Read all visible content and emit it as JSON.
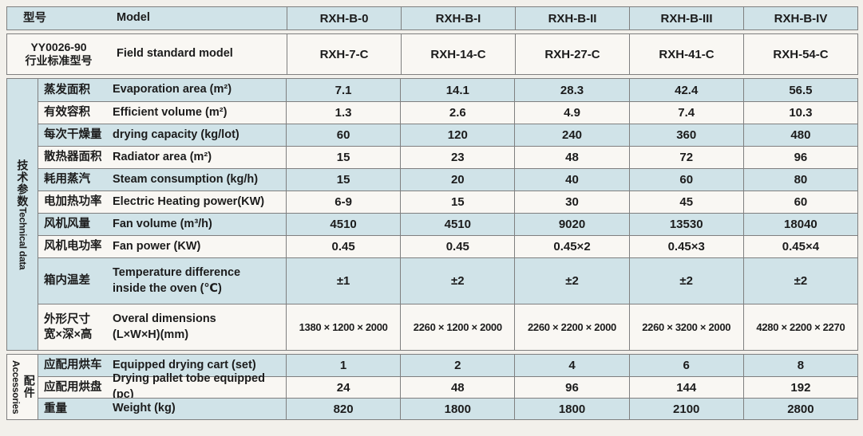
{
  "table": {
    "colors": {
      "row_blue": "#d0e3e8",
      "row_white": "#f9f7f3",
      "border": "#7f7f7f",
      "page_background": "#f2f0eb",
      "text": "#1c1c1c"
    },
    "header_rows": [
      {
        "cn": "型号",
        "en": "Model",
        "values": [
          "RXH-B-0",
          "RXH-B-I",
          "RXH-B-II",
          "RXH-B-III",
          "RXH-B-IV"
        ]
      },
      {
        "cn": "YY0026-90\n行业标准型号",
        "en": "Field standard model",
        "values": [
          "RXH-7-C",
          "RXH-14-C",
          "RXH-27-C",
          "RXH-41-C",
          "RXH-54-C"
        ]
      }
    ],
    "sections": [
      {
        "label_cn": "技术参数",
        "label_en": "Technical data",
        "rows": [
          {
            "cn": "蒸发面积",
            "en": "Evaporation area (m²)",
            "values": [
              "7.1",
              "14.1",
              "28.3",
              "42.4",
              "56.5"
            ]
          },
          {
            "cn": "有效容积",
            "en": "Efficient volume (m²)",
            "values": [
              "1.3",
              "2.6",
              "4.9",
              "7.4",
              "10.3"
            ]
          },
          {
            "cn": "每次干燥量",
            "en": "drying capacity (kg/lot)",
            "values": [
              "60",
              "120",
              "240",
              "360",
              "480"
            ]
          },
          {
            "cn": "散热器面积",
            "en": "Radiator area (m²)",
            "values": [
              "15",
              "23",
              "48",
              "72",
              "96"
            ]
          },
          {
            "cn": "耗用蒸汽",
            "en": "Steam consumption (kg/h)",
            "values": [
              "15",
              "20",
              "40",
              "60",
              "80"
            ]
          },
          {
            "cn": "电加热功率",
            "en": "Electric Heating power(KW)",
            "values": [
              "6-9",
              "15",
              "30",
              "45",
              "60"
            ]
          },
          {
            "cn": "风机风量",
            "en": "Fan volume (m³/h)",
            "values": [
              "4510",
              "4510",
              "9020",
              "13530",
              "18040"
            ]
          },
          {
            "cn": "风机电功率",
            "en": "Fan power (KW)",
            "values": [
              "0.45",
              "0.45",
              "0.45×2",
              "0.45×3",
              "0.45×4"
            ]
          },
          {
            "cn": "箱内温差",
            "en": "Temperature difference\ninside the oven (℃)",
            "values": [
              "±1",
              "±2",
              "±2",
              "±2",
              "±2"
            ]
          },
          {
            "cn": "外形尺寸\n宽×深×高",
            "en": "Overal dimensions\n(L×W×H)(mm)",
            "values": [
              "1380 × 1200 × 2000",
              "2260 × 1200 × 2000",
              "2260 × 2200 × 2000",
              "2260 × 3200 × 2000",
              "4280 × 2200 × 2270"
            ]
          }
        ]
      },
      {
        "label_cn": "配件",
        "label_en": "Accessories",
        "rows": [
          {
            "cn": "应配用烘车",
            "en": "Equipped drying cart (set)",
            "values": [
              "1",
              "2",
              "4",
              "6",
              "8"
            ]
          },
          {
            "cn": "应配用烘盘",
            "en": "Drying pallet tobe equipped (pc)",
            "values": [
              "24",
              "48",
              "96",
              "144",
              "192"
            ]
          },
          {
            "cn": "重量",
            "en": "Weight (kg)",
            "values": [
              "820",
              "1800",
              "1800",
              "2100",
              "2800"
            ]
          }
        ]
      }
    ]
  }
}
